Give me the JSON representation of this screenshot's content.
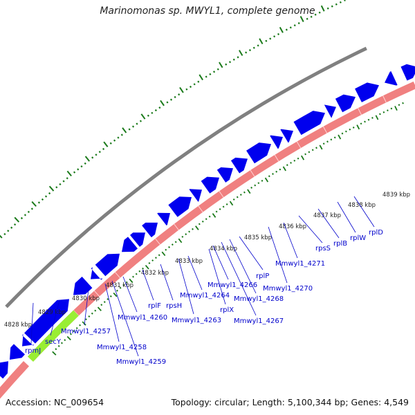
{
  "title": "Marinomonas sp. MWYL1, complete genome",
  "footer": {
    "accession": "Accession: NC_009654",
    "summary": "Topology: circular; Length: 5,100,344 bp; Genes: 4,549"
  },
  "colors": {
    "cds": "#0000ee",
    "gene": "#f08080",
    "highlight": "#99ee33",
    "backbone": "#808080",
    "ticks": "#1a7a1a",
    "label": "#0000cc"
  },
  "kbp_ticks": [
    "4828 kbp",
    "4829 kbp",
    "4830 kbp",
    "4831 kbp",
    "4832 kbp",
    "4833 kbp",
    "4834 kbp",
    "4835 kbp",
    "4836 kbp",
    "4837 kbp",
    "4838 kbp",
    "4839 kbp"
  ],
  "genes": [
    "rpmJ",
    "secY",
    "Mmwyl1_4257",
    "Mmwyl1_4258",
    "Mmwyl1_4259",
    "Mmwyl1_4260",
    "rplF",
    "rpsH",
    "Mmwyl1_4263",
    "Mmwyl1_4264",
    "rplX",
    "Mmwyl1_4266",
    "Mmwyl1_4267",
    "Mmwyl1_4268",
    "rplP",
    "Mmwyl1_4270",
    "Mmwyl1_4271",
    "rpsS",
    "rplB",
    "rplW",
    "rplD"
  ]
}
